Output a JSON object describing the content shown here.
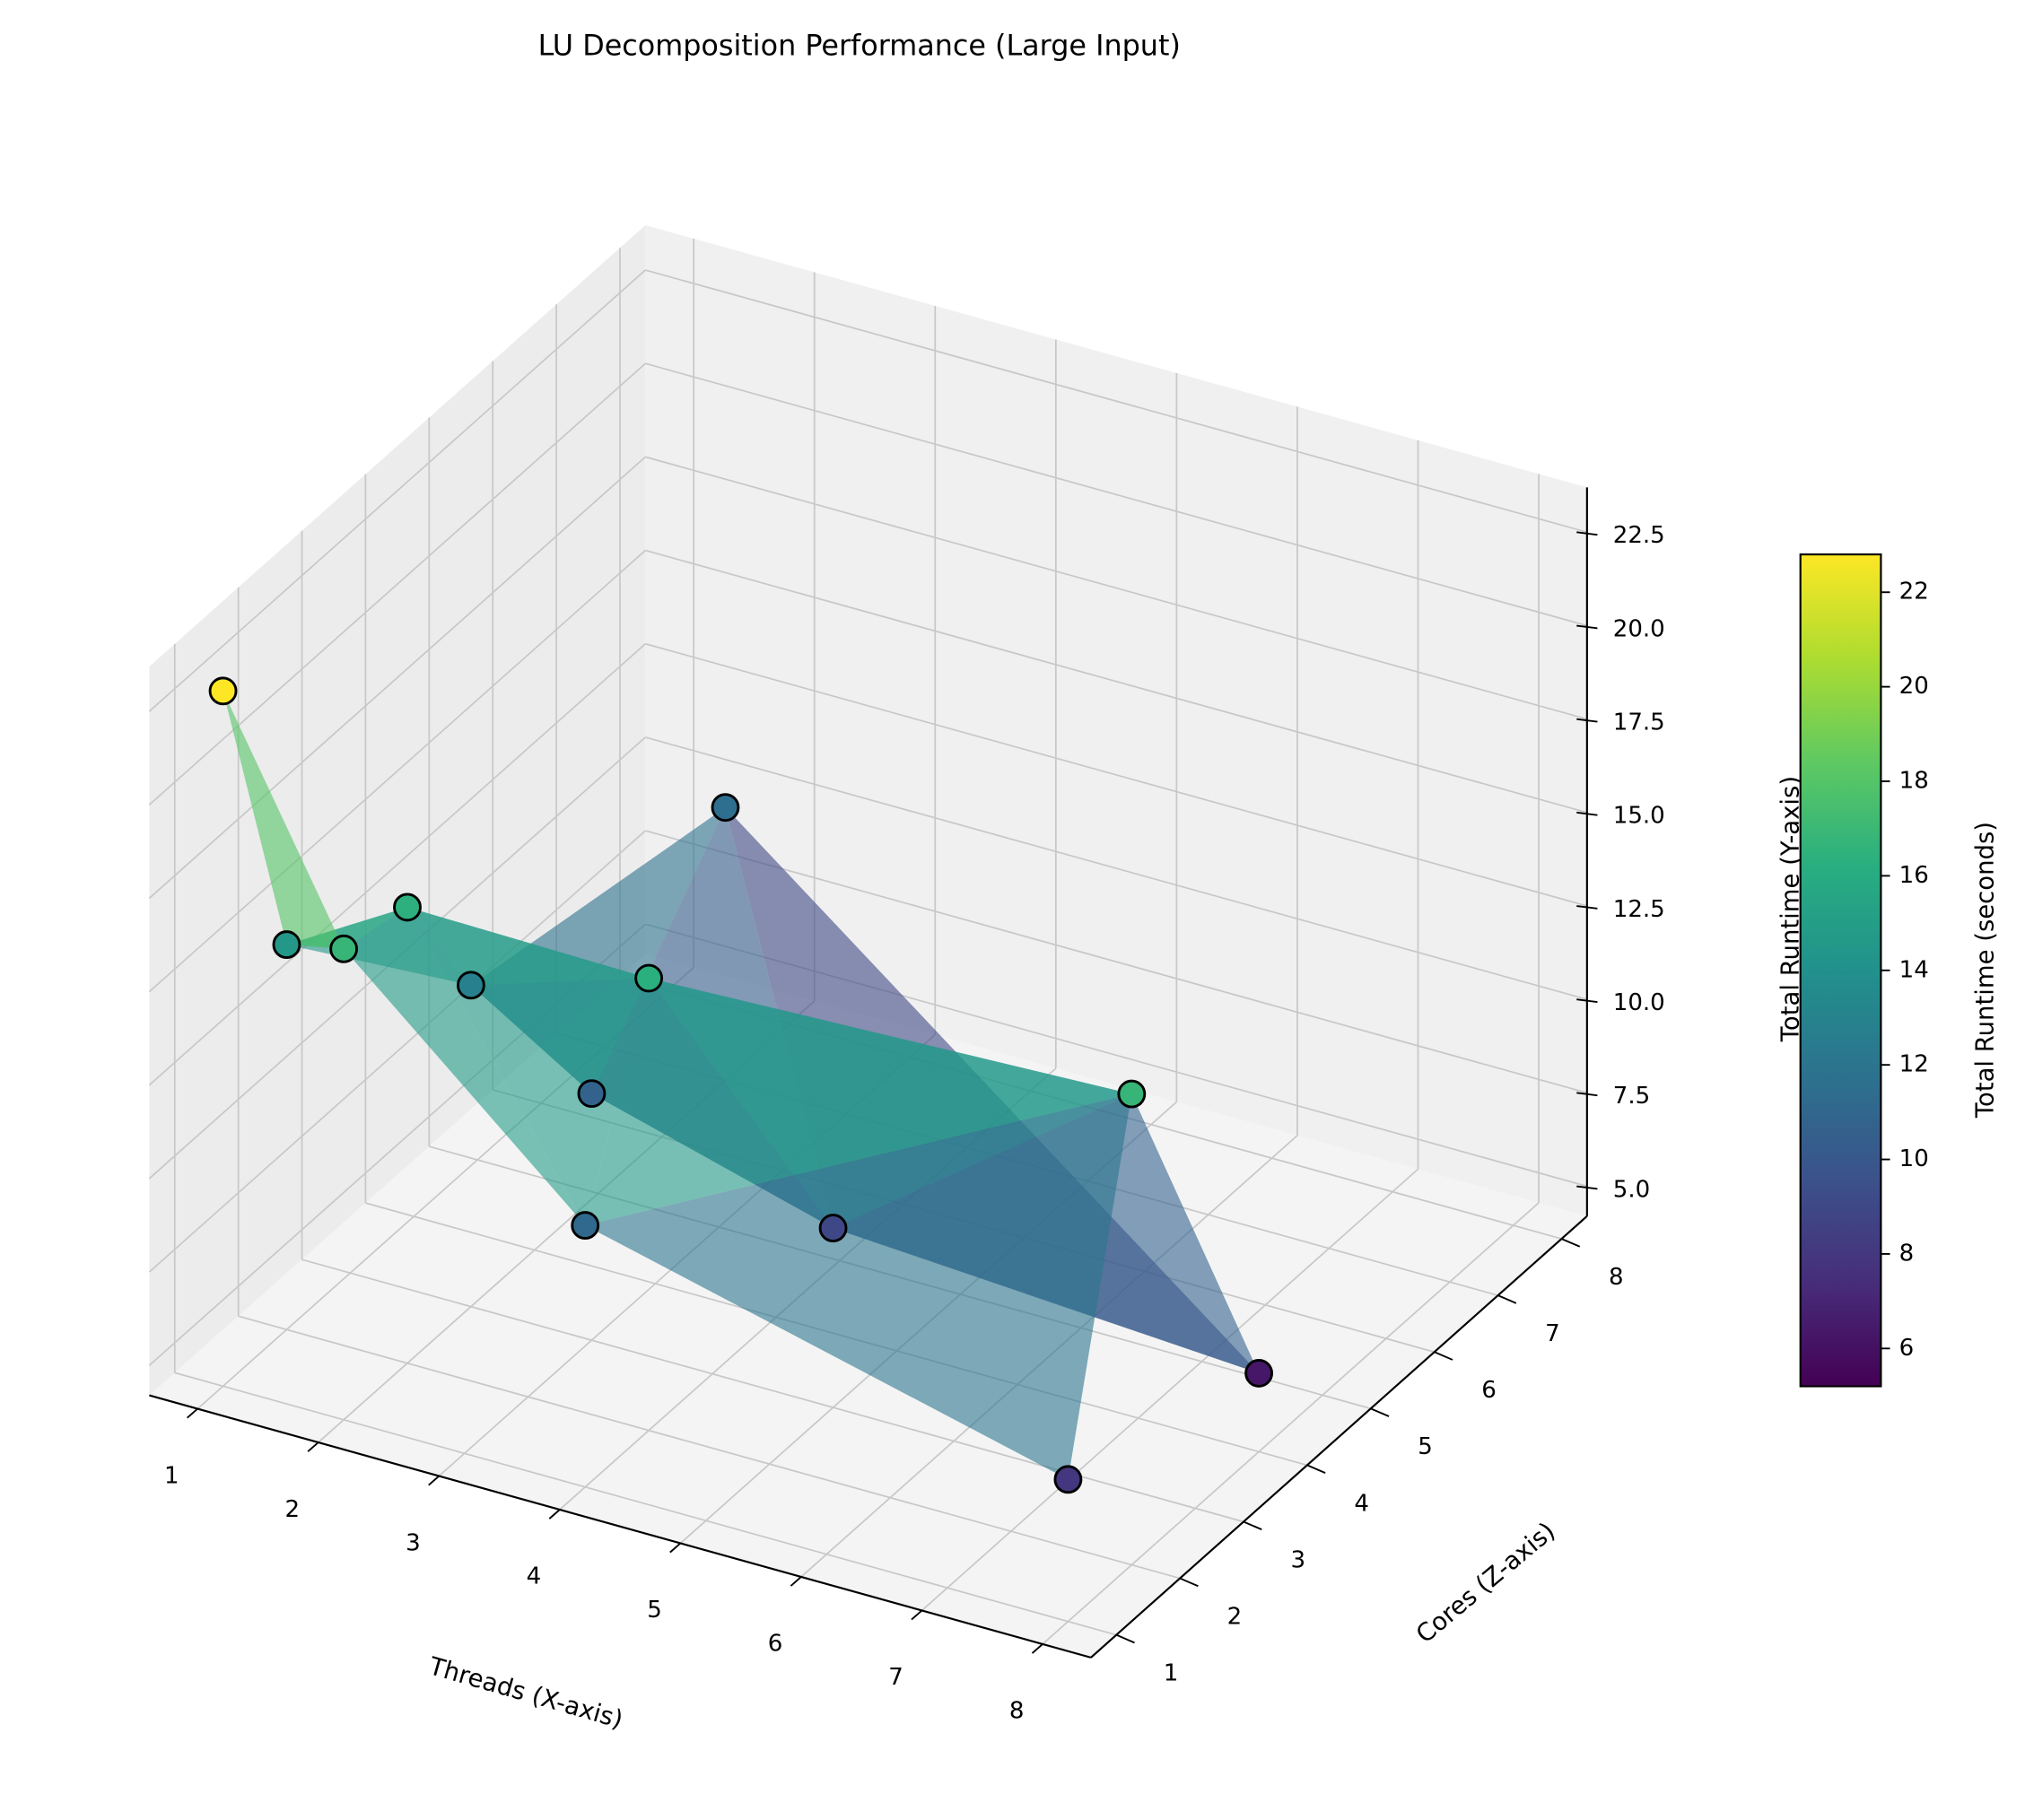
{
  "chart_data": {
    "type": "scatter3d",
    "title": "LU Decomposition Performance (Large Input)",
    "x_label": "Threads (X-axis)",
    "y_label": "Cores (Z-axis)",
    "z_label": "Total Runtime (Y-axis)",
    "x": [
      1,
      1,
      2,
      2,
      2,
      3,
      4,
      4,
      2,
      5,
      8,
      8,
      8
    ],
    "y": [
      1,
      2,
      1,
      2,
      3,
      3,
      1,
      2,
      7,
      3,
      2,
      1,
      4
    ],
    "z": [
      22.8,
      14.5,
      16.8,
      16.4,
      12.8,
      10.8,
      11.2,
      16.3,
      11.5,
      9,
      16.8,
      8,
      6.3
    ],
    "xlim": [
      0.6,
      8.4
    ],
    "ylim": [
      0.6,
      8.4
    ],
    "zlim": [
      4.2,
      23.7
    ],
    "xticks": [
      1,
      2,
      3,
      4,
      5,
      6,
      7,
      8
    ],
    "yticks": [
      1,
      2,
      3,
      4,
      5,
      6,
      7,
      8
    ],
    "zticks": [
      {
        "value": 5,
        "label": "5.0"
      },
      {
        "value": 7.5,
        "label": "7.5"
      },
      {
        "value": 10,
        "label": "10.0"
      },
      {
        "value": 12.5,
        "label": "12.5"
      },
      {
        "value": 15,
        "label": "15.0"
      },
      {
        "value": 17.5,
        "label": "17.5"
      },
      {
        "value": 20,
        "label": "20.0"
      },
      {
        "value": 22.5,
        "label": "22.5"
      }
    ],
    "colormap": "viridis",
    "grid": true,
    "colorbar": {
      "label": "Total Runtime (seconds)",
      "lim": [
        5.2,
        22.8
      ],
      "ticks": [
        6,
        8,
        10,
        12,
        14,
        16,
        18,
        20,
        22
      ]
    }
  }
}
